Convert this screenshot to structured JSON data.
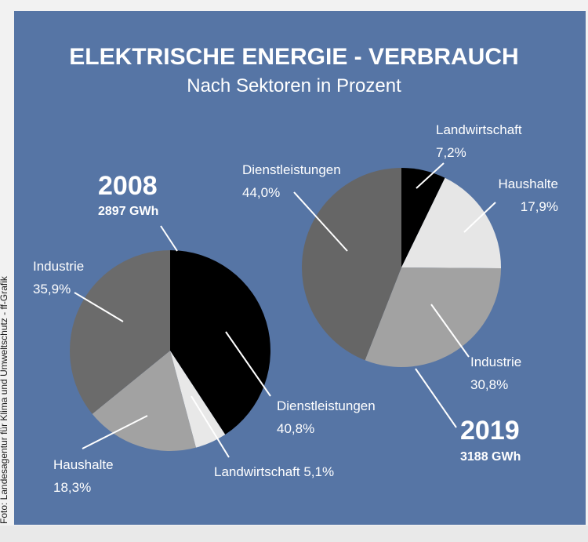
{
  "chart_data": {
    "type": "pie",
    "title": "ELEKTRISCHE ENERGIE - VERBRAUCH",
    "subtitle": "Nach Sektoren in Prozent",
    "credit": "Foto: Landesagentur für Klima und Umweltschutz - ff-Grafik",
    "colors": {
      "Dienstleistungen_2008": "#000000",
      "Landwirtschaft_2008": "#e8e8e8",
      "Haushalte_2008": "#a2a2a2",
      "Industrie_2008": "#6b6b6b",
      "Landwirtschaft_2019": "#000000",
      "Haushalte_2019": "#e6e6e6",
      "Industrie_2019": "#a2a2a2",
      "Dienstleistungen_2019": "#666666"
    },
    "pies": [
      {
        "year": "2008",
        "total": "2897 GWh",
        "slices": [
          {
            "name": "Dienstleistungen",
            "value": 40.8,
            "label_line1": "Dienstleistungen",
            "label_line2": "40,8%",
            "color": "#000000"
          },
          {
            "name": "Landwirtschaft",
            "value": 5.1,
            "label_line1": "Landwirtschaft 5,1%",
            "label_line2": "",
            "color": "#e8e8e8"
          },
          {
            "name": "Haushalte",
            "value": 18.3,
            "label_line1": "Haushalte",
            "label_line2": "18,3%",
            "color": "#a2a2a2"
          },
          {
            "name": "Industrie",
            "value": 35.9,
            "label_line1": "Industrie",
            "label_line2": "35,9%",
            "color": "#6b6b6b"
          }
        ]
      },
      {
        "year": "2019",
        "total": "3188 GWh",
        "slices": [
          {
            "name": "Landwirtschaft",
            "value": 7.2,
            "label_line1": "Landwirtschaft",
            "label_line2": "7,2%",
            "color": "#000000"
          },
          {
            "name": "Haushalte",
            "value": 17.9,
            "label_line1": "Haushalte",
            "label_line2": "17,9%",
            "color": "#e6e6e6"
          },
          {
            "name": "Industrie",
            "value": 30.8,
            "label_line1": "Industrie",
            "label_line2": "30,8%",
            "color": "#a2a2a2"
          },
          {
            "name": "Dienstleistungen",
            "value": 44.0,
            "label_line1": "Dienstleistungen",
            "label_line2": "44,0%",
            "color": "#666666"
          }
        ]
      }
    ]
  }
}
